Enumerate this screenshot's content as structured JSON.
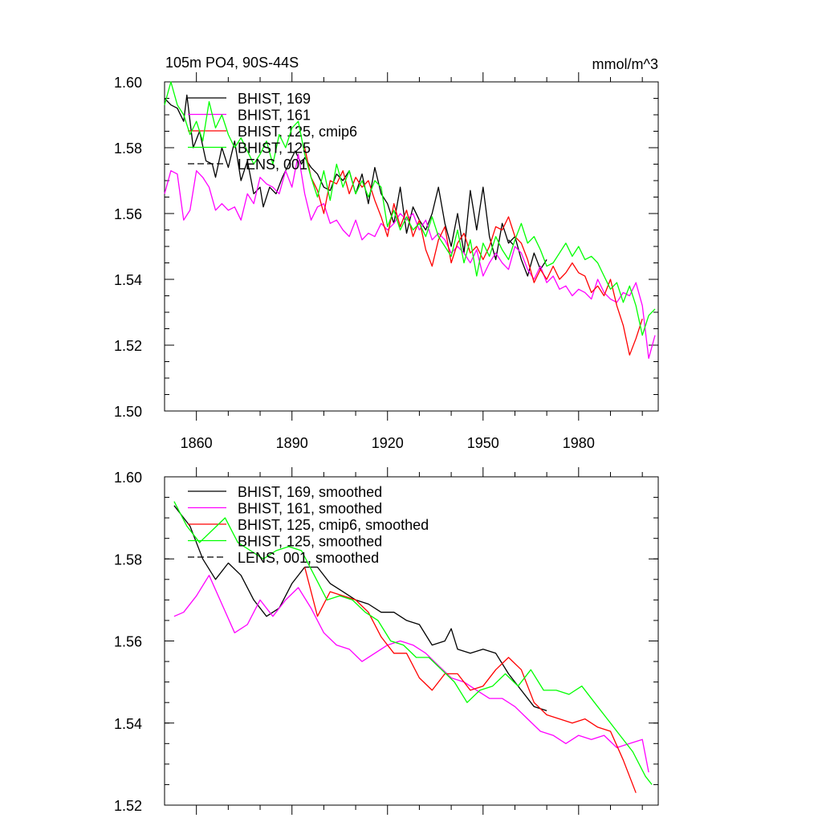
{
  "header": {
    "title": "105m PO4, 90S-44S",
    "units": "mmol/m^3"
  },
  "chart_data": [
    {
      "type": "line",
      "xlim": [
        1850,
        2005
      ],
      "ylim": [
        1.5,
        1.6
      ],
      "x_ticks": [
        1860,
        1890,
        1920,
        1950,
        1980
      ],
      "y_ticks": [
        1.5,
        1.52,
        1.54,
        1.56,
        1.58,
        1.6
      ],
      "y_tick_labels": [
        "1.50",
        "1.52",
        "1.54",
        "1.56",
        "1.58",
        "1.60"
      ],
      "x_tick_labels": [
        "1860",
        "1890",
        "1920",
        "1950",
        "1980"
      ],
      "legend": "top-left",
      "series": [
        {
          "name": "BHIST, 169",
          "color": "#000000",
          "dash": false,
          "x": [
            1850,
            1852,
            1854,
            1856,
            1857,
            1859,
            1861,
            1863,
            1865,
            1866,
            1868,
            1870,
            1872,
            1874,
            1876,
            1878,
            1880,
            1881,
            1883,
            1885,
            1887,
            1889,
            1891,
            1893,
            1894,
            1896,
            1898,
            1900,
            1902,
            1904,
            1906,
            1908,
            1910,
            1912,
            1914,
            1916,
            1918,
            1920,
            1922,
            1924,
            1926,
            1928,
            1930,
            1932,
            1934,
            1936,
            1938,
            1940,
            1942,
            1944,
            1946,
            1948,
            1950,
            1952,
            1954,
            1956,
            1958,
            1960,
            1962,
            1964,
            1966,
            1968,
            1970
          ],
          "y": [
            1.595,
            1.593,
            1.592,
            1.588,
            1.596,
            1.58,
            1.585,
            1.576,
            1.575,
            1.571,
            1.58,
            1.574,
            1.582,
            1.57,
            1.576,
            1.566,
            1.568,
            1.562,
            1.568,
            1.566,
            1.571,
            1.575,
            1.579,
            1.575,
            1.577,
            1.574,
            1.572,
            1.568,
            1.567,
            1.572,
            1.57,
            1.573,
            1.566,
            1.572,
            1.563,
            1.574,
            1.566,
            1.563,
            1.557,
            1.568,
            1.554,
            1.562,
            1.558,
            1.555,
            1.56,
            1.568,
            1.557,
            1.55,
            1.56,
            1.548,
            1.567,
            1.555,
            1.568,
            1.553,
            1.546,
            1.557,
            1.551,
            1.553,
            1.546,
            1.541,
            1.548,
            1.543,
            1.546
          ]
        },
        {
          "name": "BHIST, 161",
          "color": "#ff00ff",
          "dash": false,
          "x": [
            1850,
            1852,
            1854,
            1856,
            1858,
            1860,
            1862,
            1864,
            1866,
            1868,
            1870,
            1872,
            1874,
            1876,
            1878,
            1880,
            1882,
            1884,
            1886,
            1888,
            1890,
            1892,
            1894,
            1896,
            1898,
            1900,
            1902,
            1904,
            1906,
            1908,
            1910,
            1912,
            1914,
            1916,
            1918,
            1920,
            1922,
            1924,
            1926,
            1928,
            1930,
            1932,
            1934,
            1936,
            1938,
            1940,
            1942,
            1944,
            1946,
            1948,
            1950,
            1952,
            1954,
            1956,
            1958,
            1960,
            1962,
            1964,
            1966,
            1968,
            1970,
            1972,
            1974,
            1976,
            1978,
            1980,
            1982,
            1984,
            1986,
            1988,
            1990,
            1992,
            1994,
            1996,
            1998,
            2000,
            2002,
            2004
          ],
          "y": [
            1.566,
            1.573,
            1.572,
            1.558,
            1.561,
            1.573,
            1.571,
            1.568,
            1.561,
            1.563,
            1.561,
            1.562,
            1.558,
            1.566,
            1.563,
            1.571,
            1.569,
            1.568,
            1.566,
            1.573,
            1.568,
            1.578,
            1.566,
            1.558,
            1.562,
            1.563,
            1.557,
            1.558,
            1.555,
            1.553,
            1.558,
            1.552,
            1.554,
            1.553,
            1.557,
            1.555,
            1.557,
            1.56,
            1.558,
            1.56,
            1.555,
            1.558,
            1.552,
            1.554,
            1.552,
            1.548,
            1.55,
            1.548,
            1.545,
            1.549,
            1.541,
            1.545,
            1.548,
            1.545,
            1.543,
            1.55,
            1.548,
            1.543,
            1.54,
            1.544,
            1.539,
            1.541,
            1.537,
            1.538,
            1.535,
            1.537,
            1.536,
            1.534,
            1.54,
            1.536,
            1.534,
            1.533,
            1.536,
            1.535,
            1.539,
            1.532,
            1.516,
            1.523
          ]
        },
        {
          "name": "BHIST, 125, cmip6",
          "color": "#ff0000",
          "dash": false,
          "x": [
            1894,
            1896,
            1898,
            1900,
            1902,
            1904,
            1906,
            1908,
            1910,
            1912,
            1914,
            1916,
            1918,
            1920,
            1922,
            1924,
            1926,
            1928,
            1930,
            1932,
            1934,
            1936,
            1938,
            1940,
            1942,
            1944,
            1946,
            1948,
            1950,
            1952,
            1954,
            1956,
            1958,
            1960,
            1962,
            1964,
            1966,
            1968,
            1970,
            1972,
            1974,
            1976,
            1978,
            1980,
            1982,
            1984,
            1986,
            1988,
            1990,
            1992,
            1994,
            1996,
            1998,
            2000
          ],
          "y": [
            1.58,
            1.571,
            1.567,
            1.56,
            1.57,
            1.569,
            1.573,
            1.566,
            1.571,
            1.568,
            1.57,
            1.564,
            1.559,
            1.553,
            1.563,
            1.556,
            1.561,
            1.553,
            1.558,
            1.549,
            1.544,
            1.552,
            1.556,
            1.545,
            1.551,
            1.554,
            1.548,
            1.55,
            1.546,
            1.55,
            1.556,
            1.555,
            1.559,
            1.553,
            1.551,
            1.546,
            1.539,
            1.543,
            1.54,
            1.544,
            1.54,
            1.542,
            1.545,
            1.542,
            1.541,
            1.536,
            1.538,
            1.535,
            1.54,
            1.532,
            1.526,
            1.517,
            1.522,
            1.528
          ]
        },
        {
          "name": "BHIST, 125",
          "color": "#00ff00",
          "dash": false,
          "x": [
            1850,
            1852,
            1854,
            1856,
            1858,
            1860,
            1862,
            1864,
            1866,
            1868,
            1870,
            1872,
            1874,
            1876,
            1878,
            1880,
            1882,
            1884,
            1886,
            1888,
            1890,
            1892,
            1894,
            1896,
            1898,
            1900,
            1902,
            1904,
            1906,
            1908,
            1910,
            1912,
            1914,
            1916,
            1918,
            1920,
            1922,
            1924,
            1926,
            1928,
            1930,
            1932,
            1934,
            1936,
            1938,
            1940,
            1942,
            1944,
            1946,
            1948,
            1950,
            1952,
            1954,
            1956,
            1958,
            1960,
            1962,
            1964,
            1966,
            1968,
            1970,
            1972,
            1974,
            1976,
            1978,
            1980,
            1982,
            1984,
            1986,
            1988,
            1990,
            1992,
            1994,
            1996,
            1998,
            2000,
            2002,
            2004
          ],
          "y": [
            1.593,
            1.6,
            1.593,
            1.59,
            1.584,
            1.588,
            1.582,
            1.594,
            1.586,
            1.59,
            1.584,
            1.58,
            1.583,
            1.579,
            1.575,
            1.578,
            1.582,
            1.575,
            1.584,
            1.58,
            1.586,
            1.588,
            1.578,
            1.571,
            1.565,
            1.573,
            1.564,
            1.575,
            1.568,
            1.573,
            1.566,
            1.57,
            1.565,
            1.57,
            1.568,
            1.556,
            1.561,
            1.555,
            1.559,
            1.555,
            1.557,
            1.553,
            1.559,
            1.553,
            1.55,
            1.547,
            1.555,
            1.545,
            1.552,
            1.541,
            1.551,
            1.547,
            1.553,
            1.549,
            1.546,
            1.552,
            1.557,
            1.551,
            1.553,
            1.549,
            1.544,
            1.545,
            1.548,
            1.551,
            1.547,
            1.55,
            1.546,
            1.547,
            1.545,
            1.541,
            1.537,
            1.539,
            1.533,
            1.538,
            1.532,
            1.523,
            1.529,
            1.531
          ]
        },
        {
          "name": "LENS, 001",
          "color": "#000000",
          "dash": true,
          "x": [
            1958,
            1960
          ],
          "y": [
            1.552,
            1.55
          ]
        }
      ]
    },
    {
      "type": "line",
      "xlim": [
        1850,
        2005
      ],
      "ylim": [
        1.52,
        1.6
      ],
      "y_ticks": [
        1.52,
        1.54,
        1.56,
        1.58,
        1.6
      ],
      "y_tick_labels": [
        "1.52",
        "1.54",
        "1.56",
        "1.58",
        "1.60"
      ],
      "legend": "top-left",
      "series": [
        {
          "name": "BHIST, 169, smoothed",
          "color": "#000000",
          "dash": false,
          "x": [
            1853,
            1858,
            1862,
            1866,
            1870,
            1874,
            1878,
            1882,
            1886,
            1890,
            1894,
            1898,
            1902,
            1906,
            1910,
            1914,
            1918,
            1922,
            1926,
            1930,
            1934,
            1938,
            1940,
            1942,
            1946,
            1950,
            1954,
            1958,
            1962,
            1966,
            1970
          ],
          "y": [
            1.593,
            1.588,
            1.58,
            1.575,
            1.579,
            1.576,
            1.57,
            1.566,
            1.568,
            1.574,
            1.578,
            1.578,
            1.574,
            1.572,
            1.57,
            1.569,
            1.567,
            1.567,
            1.565,
            1.564,
            1.559,
            1.56,
            1.563,
            1.558,
            1.557,
            1.558,
            1.557,
            1.552,
            1.548,
            1.544,
            1.543
          ]
        },
        {
          "name": "BHIST, 161, smoothed",
          "color": "#ff00ff",
          "dash": false,
          "x": [
            1853,
            1856,
            1860,
            1864,
            1868,
            1872,
            1876,
            1880,
            1884,
            1888,
            1892,
            1896,
            1900,
            1904,
            1908,
            1912,
            1916,
            1920,
            1924,
            1928,
            1932,
            1936,
            1940,
            1944,
            1948,
            1952,
            1956,
            1960,
            1964,
            1968,
            1972,
            1976,
            1980,
            1984,
            1988,
            1992,
            1996,
            2000,
            2002
          ],
          "y": [
            1.566,
            1.567,
            1.571,
            1.576,
            1.569,
            1.562,
            1.564,
            1.57,
            1.566,
            1.57,
            1.573,
            1.568,
            1.562,
            1.559,
            1.558,
            1.555,
            1.557,
            1.559,
            1.56,
            1.559,
            1.557,
            1.554,
            1.551,
            1.55,
            1.548,
            1.546,
            1.546,
            1.544,
            1.541,
            1.538,
            1.537,
            1.535,
            1.537,
            1.536,
            1.537,
            1.534,
            1.535,
            1.536,
            1.528
          ]
        },
        {
          "name": "BHIST, 125, cmip6, smoothed",
          "color": "#ff0000",
          "dash": false,
          "x": [
            1894,
            1898,
            1902,
            1906,
            1910,
            1914,
            1918,
            1922,
            1926,
            1930,
            1934,
            1938,
            1942,
            1946,
            1950,
            1954,
            1958,
            1962,
            1966,
            1970,
            1974,
            1978,
            1982,
            1986,
            1990,
            1994,
            1998
          ],
          "y": [
            1.578,
            1.566,
            1.572,
            1.571,
            1.57,
            1.567,
            1.561,
            1.557,
            1.557,
            1.551,
            1.548,
            1.552,
            1.552,
            1.548,
            1.549,
            1.553,
            1.556,
            1.553,
            1.545,
            1.542,
            1.541,
            1.54,
            1.541,
            1.539,
            1.538,
            1.531,
            1.523
          ]
        },
        {
          "name": "BHIST, 125, smoothed",
          "color": "#00ff00",
          "dash": false,
          "x": [
            1853,
            1857,
            1861,
            1865,
            1869,
            1873,
            1877,
            1881,
            1885,
            1889,
            1893,
            1897,
            1901,
            1905,
            1909,
            1913,
            1917,
            1921,
            1925,
            1929,
            1933,
            1937,
            1941,
            1945,
            1949,
            1953,
            1957,
            1961,
            1965,
            1969,
            1973,
            1977,
            1981,
            1985,
            1989,
            1993,
            1997,
            2001,
            2003
          ],
          "y": [
            1.594,
            1.588,
            1.584,
            1.587,
            1.59,
            1.584,
            1.582,
            1.58,
            1.582,
            1.583,
            1.582,
            1.576,
            1.57,
            1.571,
            1.57,
            1.567,
            1.565,
            1.56,
            1.559,
            1.556,
            1.556,
            1.553,
            1.55,
            1.545,
            1.548,
            1.549,
            1.552,
            1.549,
            1.553,
            1.548,
            1.548,
            1.547,
            1.549,
            1.545,
            1.541,
            1.537,
            1.533,
            1.527,
            1.525
          ]
        },
        {
          "name": "LENS, 001, smoothed",
          "color": "#000000",
          "dash": true,
          "x": [],
          "y": []
        }
      ]
    }
  ]
}
